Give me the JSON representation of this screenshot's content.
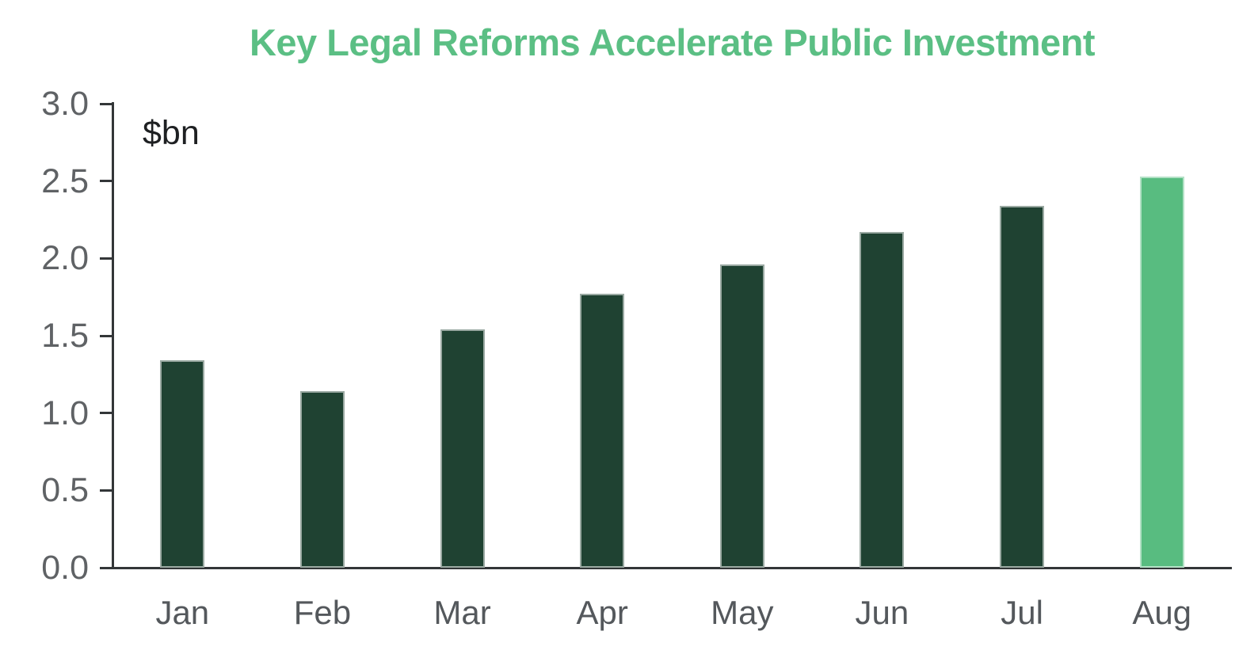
{
  "title": "Key Legal Reforms Accelerate Public Investment",
  "colors": {
    "title": "#5bbf84",
    "bar_default": "#1f4232",
    "bar_highlight": "#58bc80",
    "axis": "#333638",
    "y_tick_label": "#5f6265",
    "x_tick_label": "#54585c",
    "unit_label": "#1e2022"
  },
  "chart_data": {
    "type": "bar",
    "title": "Key Legal Reforms Accelerate Public Investment",
    "unit_label": "$bn",
    "xlabel": "",
    "ylabel": "$bn",
    "categories": [
      "Jan",
      "Feb",
      "Mar",
      "Apr",
      "May",
      "Jun",
      "Jul",
      "Aug"
    ],
    "values": [
      1.34,
      1.14,
      1.54,
      1.77,
      1.96,
      2.17,
      2.34,
      2.53
    ],
    "highlight_index": 7,
    "highlight_category": "Aug",
    "ylim": [
      0.0,
      3.0
    ],
    "ytick_labels": [
      "0.0",
      "0.5",
      "1.0",
      "1.5",
      "2.0",
      "2.5",
      "3.0"
    ],
    "grid": false,
    "legend": "none"
  }
}
